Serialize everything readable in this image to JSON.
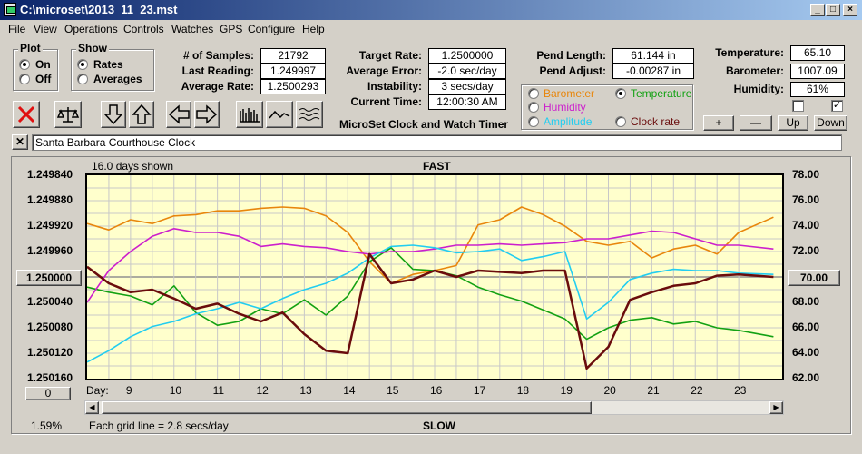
{
  "window": {
    "title": "C:\\microset\\2013_11_23.mst"
  },
  "menu": [
    "File",
    "View",
    "Operations",
    "Controls",
    "Watches",
    "GPS",
    "Configure",
    "Help"
  ],
  "plot_group": {
    "title": "Plot",
    "on": "On",
    "off": "Off",
    "selected": "On"
  },
  "show_group": {
    "title": "Show",
    "rates": "Rates",
    "averages": "Averages",
    "selected": "Rates"
  },
  "stats": {
    "samples_label": "# of Samples:",
    "samples": "21792",
    "last_label": "Last Reading:",
    "last": "1.249997",
    "avg_label": "Average Rate:",
    "avg": "1.2500293",
    "target_label": "Target Rate:",
    "target": "1.2500000",
    "avgerr_label": "Average Error:",
    "avgerr": "-2.0 sec/day",
    "instab_label": "Instability:",
    "instab": "3 secs/day",
    "time_label": "Current Time:",
    "time": "12:00:30 AM",
    "pendlen_label": "Pend Length:",
    "pendlen": "61.144 in",
    "pendadj_label": "Pend Adjust:",
    "pendadj": "-0.00287 in",
    "temp_label": "Temperature:",
    "temp": "65.10",
    "baro_label": "Barometer:",
    "baro": "1007.09",
    "hum_label": "Humidity:",
    "hum": "61%"
  },
  "app_title": "MicroSet Clock and Watch Timer",
  "overlay": {
    "barometer": "Barometer",
    "temperature": "Temperature",
    "humidity": "Humidity",
    "amplitude": "Amplitude",
    "clockrate": "Clock rate",
    "selected": "Temperature"
  },
  "adjust_buttons": [
    "+",
    "—",
    "Up",
    "Down"
  ],
  "watch_name": "Santa Barbara Courthouse Clock",
  "colors": {
    "barometer": "#e8860c",
    "temperature": "#13a113",
    "humidity": "#cc20cc",
    "amplitude": "#22cdf0",
    "clockrate": "#6a0c0c",
    "plot_bg": "#ffffcc"
  },
  "chart_header": {
    "days_shown": "16.0 days shown",
    "fast": "FAST",
    "slow": "SLOW",
    "grid_note": "Each grid line = 2.8 secs/day",
    "percent": "1.59%",
    "center_rate": "1.250000",
    "center_temp": "70.00",
    "zero": "0",
    "day_label": "Day:"
  },
  "chart_data": {
    "type": "line",
    "ylim_left": [
      1.24984,
      1.25016
    ],
    "ylim_right": [
      62,
      78
    ],
    "left_ticks": [
      "1.249840",
      "1.249880",
      "1.249920",
      "1.249960",
      "1.250000",
      "1.250040",
      "1.250080",
      "1.250120",
      "1.250160"
    ],
    "right_ticks": [
      "78.00",
      "76.00",
      "74.00",
      "72.00",
      "70.00",
      "68.00",
      "66.00",
      "64.00",
      "62.00"
    ],
    "x_ticks": [
      "9",
      "10",
      "11",
      "12",
      "13",
      "14",
      "15",
      "16",
      "17",
      "18",
      "19",
      "20",
      "21",
      "22",
      "23"
    ],
    "x": [
      8,
      8.5,
      9,
      9.5,
      10,
      10.5,
      11,
      11.5,
      12,
      12.5,
      13,
      13.5,
      14,
      14.5,
      15,
      15.5,
      16,
      16.5,
      17,
      17.5,
      18,
      18.5,
      19,
      19.5,
      20,
      20.5,
      21,
      21.5,
      22,
      22.5,
      23,
      23.8
    ],
    "series": [
      {
        "name": "Barometer",
        "color": "#e8860c",
        "values": [
          74.2,
          73.7,
          74.5,
          74.2,
          74.8,
          74.9,
          75.2,
          75.2,
          75.4,
          75.5,
          75.4,
          74.8,
          73.5,
          71.2,
          69.5,
          70.2,
          70.5,
          70.9,
          74.1,
          74.5,
          75.5,
          74.9,
          74.0,
          72.8,
          72.5,
          72.8,
          71.5,
          72.2,
          72.5,
          71.8,
          73.5,
          74.7
        ]
      },
      {
        "name": "Temperature",
        "color": "#13a113",
        "values": [
          69.2,
          68.8,
          68.5,
          67.8,
          69.3,
          67.2,
          66.2,
          66.5,
          67.5,
          67.1,
          68.2,
          67.0,
          68.5,
          71.2,
          72.3,
          70.6,
          70.5,
          70.1,
          69.2,
          68.6,
          68.1,
          67.4,
          66.7,
          65.1,
          66.0,
          66.6,
          66.8,
          66.3,
          66.5,
          66.0,
          65.8,
          65.3
        ]
      },
      {
        "name": "Humidity",
        "color": "#cc20cc",
        "values": [
          68.0,
          70.5,
          72.0,
          73.2,
          73.8,
          73.5,
          73.5,
          73.2,
          72.4,
          72.6,
          72.4,
          72.3,
          72.0,
          71.8,
          72.0,
          72.0,
          72.2,
          72.5,
          72.5,
          72.6,
          72.5,
          72.6,
          72.7,
          73.0,
          73.0,
          73.3,
          73.6,
          73.5,
          73.0,
          72.5,
          72.5,
          72.2
        ]
      },
      {
        "name": "Amplitude",
        "color": "#22cdf0",
        "values": [
          63.3,
          64.2,
          65.3,
          66.1,
          66.5,
          67.1,
          67.5,
          68.0,
          67.5,
          68.3,
          69.0,
          69.5,
          70.3,
          71.5,
          72.4,
          72.5,
          72.3,
          71.9,
          72.0,
          72.2,
          71.3,
          71.6,
          72.0,
          66.7,
          68.0,
          69.8,
          70.3,
          70.6,
          70.5,
          70.5,
          70.3,
          70.2
        ]
      },
      {
        "name": "Clock rate",
        "color": "#6a0c0c",
        "values": [
          70.8,
          69.5,
          68.8,
          69.0,
          68.3,
          67.5,
          67.9,
          67.1,
          66.5,
          67.2,
          65.5,
          64.2,
          64.0,
          71.8,
          69.5,
          69.8,
          70.5,
          70.0,
          70.5,
          70.4,
          70.3,
          70.5,
          70.5,
          62.8,
          64.5,
          68.2,
          68.8,
          69.3,
          69.5,
          70.1,
          70.2,
          70.0
        ]
      }
    ]
  }
}
